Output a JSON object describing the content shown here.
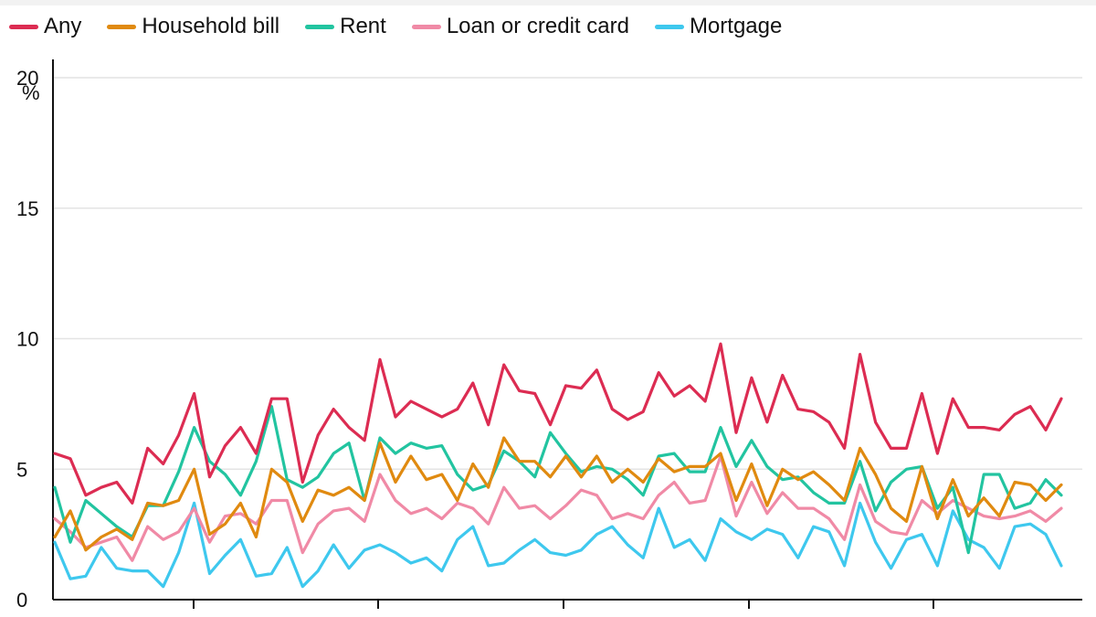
{
  "chart_data": {
    "type": "line",
    "yunit": "%",
    "ylim": [
      0,
      20
    ],
    "yticks": [
      "0",
      "5",
      "10",
      "15",
      "20"
    ],
    "grid": true,
    "legend_position": "top-left",
    "series": [
      {
        "name": "Any",
        "color": "#dc2c52",
        "values": [
          5.6,
          5.4,
          4.0,
          4.3,
          4.5,
          3.7,
          5.8,
          5.2,
          6.3,
          7.9,
          4.7,
          5.9,
          6.6,
          5.6,
          7.7,
          7.7,
          4.5,
          6.3,
          7.3,
          6.6,
          6.1,
          9.2,
          7.0,
          7.6,
          7.3,
          7.0,
          7.3,
          8.3,
          6.7,
          9.0,
          8.0,
          7.9,
          6.7,
          8.2,
          8.1,
          8.8,
          7.3,
          6.9,
          7.2,
          8.7,
          7.8,
          8.2,
          7.6,
          9.8,
          6.4,
          8.5,
          6.8,
          8.6,
          7.3,
          7.2,
          6.8,
          5.8,
          9.4,
          6.8,
          5.8,
          5.8,
          7.9,
          5.6,
          7.7,
          6.6,
          6.6,
          6.5,
          7.1,
          7.4,
          6.5,
          7.7
        ]
      },
      {
        "name": "Household bill",
        "color": "#e08a10",
        "values": [
          2.4,
          3.4,
          1.9,
          2.4,
          2.7,
          2.3,
          3.7,
          3.6,
          3.8,
          5.0,
          2.5,
          2.9,
          3.7,
          2.4,
          5.0,
          4.5,
          3.0,
          4.2,
          4.0,
          4.3,
          3.8,
          6.0,
          4.5,
          5.5,
          4.6,
          4.8,
          3.8,
          5.2,
          4.3,
          6.2,
          5.3,
          5.3,
          4.7,
          5.5,
          4.7,
          5.5,
          4.5,
          5.0,
          4.5,
          5.4,
          4.9,
          5.1,
          5.1,
          5.6,
          3.8,
          5.2,
          3.6,
          5.0,
          4.6,
          4.9,
          4.4,
          3.8,
          5.8,
          4.8,
          3.5,
          3.0,
          5.1,
          3.1,
          4.6,
          3.2,
          3.9,
          3.2,
          4.5,
          4.4,
          3.8,
          4.4
        ]
      },
      {
        "name": "Rent",
        "color": "#22c4a0",
        "values": [
          4.3,
          2.2,
          3.8,
          3.3,
          2.8,
          2.4,
          3.6,
          3.6,
          4.9,
          6.6,
          5.3,
          4.8,
          4.0,
          5.3,
          7.4,
          4.6,
          4.3,
          4.7,
          5.6,
          6.0,
          3.8,
          6.2,
          5.6,
          6.0,
          5.8,
          5.9,
          4.8,
          4.2,
          4.4,
          5.7,
          5.3,
          4.7,
          6.4,
          5.6,
          4.9,
          5.1,
          5.0,
          4.6,
          4.0,
          5.5,
          5.6,
          4.9,
          4.9,
          6.6,
          5.1,
          6.1,
          5.1,
          4.6,
          4.7,
          4.1,
          3.7,
          3.7,
          5.3,
          3.4,
          4.5,
          5.0,
          5.1,
          3.5,
          4.3,
          1.8,
          4.8,
          4.8,
          3.5,
          3.7,
          4.6,
          4.0
        ]
      },
      {
        "name": "Loan or credit card",
        "color": "#f08aa6",
        "values": [
          3.1,
          2.6,
          2.0,
          2.2,
          2.4,
          1.5,
          2.8,
          2.3,
          2.6,
          3.5,
          2.2,
          3.2,
          3.3,
          2.9,
          3.8,
          3.8,
          1.8,
          2.9,
          3.4,
          3.5,
          3.0,
          4.8,
          3.8,
          3.3,
          3.5,
          3.1,
          3.7,
          3.5,
          2.9,
          4.3,
          3.5,
          3.6,
          3.1,
          3.6,
          4.2,
          4.0,
          3.1,
          3.3,
          3.1,
          4.0,
          4.5,
          3.7,
          3.8,
          5.5,
          3.2,
          4.5,
          3.3,
          4.1,
          3.5,
          3.5,
          3.1,
          2.3,
          4.4,
          3.0,
          2.6,
          2.5,
          3.8,
          3.3,
          3.8,
          3.5,
          3.2,
          3.1,
          3.2,
          3.4,
          3.0,
          3.5
        ]
      },
      {
        "name": "Mortgage",
        "color": "#3ec8ee",
        "values": [
          2.2,
          0.8,
          0.9,
          2.0,
          1.2,
          1.1,
          1.1,
          0.5,
          1.8,
          3.7,
          1.0,
          1.7,
          2.3,
          0.9,
          1.0,
          2.0,
          0.5,
          1.1,
          2.1,
          1.2,
          1.9,
          2.1,
          1.8,
          1.4,
          1.6,
          1.1,
          2.3,
          2.8,
          1.3,
          1.4,
          1.9,
          2.3,
          1.8,
          1.7,
          1.9,
          2.5,
          2.8,
          2.1,
          1.6,
          3.5,
          2.0,
          2.3,
          1.5,
          3.1,
          2.6,
          2.3,
          2.7,
          2.5,
          1.6,
          2.8,
          2.6,
          1.3,
          3.7,
          2.2,
          1.2,
          2.3,
          2.5,
          1.3,
          3.4,
          2.3,
          2.0,
          1.2,
          2.8,
          2.9,
          2.5,
          1.3
        ]
      }
    ]
  }
}
